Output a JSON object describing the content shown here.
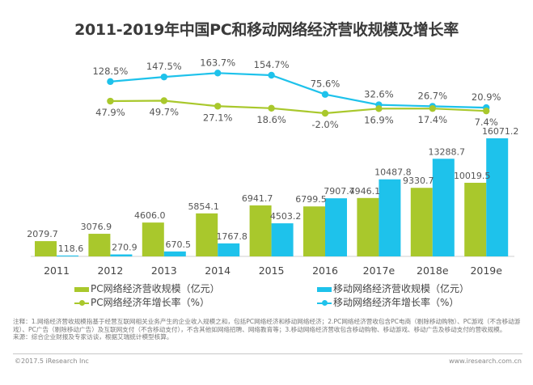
{
  "title": "2011-2019年中国PC和移动网络经济营收规模及增长率",
  "colors": {
    "pc": "#a9c82c",
    "mobile": "#1ec2eb",
    "label": "#555555",
    "axis": "#cfcfcf"
  },
  "chart_data": {
    "type": "bar",
    "title": "2011-2019年中国PC和移动网络经济营收规模及增长率",
    "categories": [
      "2011",
      "2012",
      "2013",
      "2014",
      "2015",
      "2016",
      "2017e",
      "2018e",
      "2019e"
    ],
    "series": [
      {
        "name": "PC网络经济营收规模（亿元）",
        "type": "bar",
        "values": [
          2079.7,
          3076.9,
          4606.0,
          5854.1,
          6941.7,
          6799.5,
          7946.1,
          9330.7,
          10019.5
        ],
        "labels": [
          "2079.7",
          "3076.9",
          "4606.0",
          "5854.1",
          "6941.7",
          "6799.5",
          "7946.1",
          "9330.7",
          "10019.5"
        ]
      },
      {
        "name": "移动网络经济营收规模（亿元）",
        "type": "bar",
        "values": [
          118.6,
          270.9,
          670.5,
          1767.8,
          4503.2,
          7907.4,
          10487.8,
          13288.7,
          16071.2
        ],
        "labels": [
          "118.6",
          "270.9",
          "670.5",
          "1767.8",
          "4503.2",
          "7907.4",
          "10487.8",
          "13288.7",
          "16071.2"
        ]
      },
      {
        "name": "PC网络经济年增长率（%）",
        "type": "line",
        "values": [
          null,
          47.9,
          49.7,
          27.1,
          18.6,
          -2.0,
          16.9,
          17.4,
          7.4
        ],
        "labels": [
          null,
          "47.9%",
          "49.7%",
          "27.1%",
          "18.6%",
          "-2.0%",
          "16.9%",
          "17.4%",
          "7.4%"
        ]
      },
      {
        "name": "移动网络经济年增长率（%）",
        "type": "line",
        "values": [
          null,
          128.5,
          147.5,
          163.7,
          154.7,
          75.6,
          32.6,
          26.7,
          20.9
        ],
        "labels": [
          null,
          "128.5%",
          "147.5%",
          "163.7%",
          "154.7%",
          "75.6%",
          "32.6%",
          "26.7%",
          "20.9%"
        ]
      }
    ],
    "xlabel": "",
    "ylabel": "",
    "ylim": [
      0,
      18000
    ],
    "grid": false,
    "legend": "bottom"
  },
  "legend": {
    "pc_bar": "PC网络经济营收规模（亿元）",
    "mobile_bar": "移动网络经济营收规模（亿元）",
    "pc_line": "PC网络经济年增长率（%）",
    "mobile_line": "移动网络经济年增长率（%）"
  },
  "notes": {
    "line1": "注释：1.网络经济营收规模指基于经营互联网相关业务产生的企业收入规模之和，包括PC网络经济和移动网络经济；2.PC网络经济营收包含PC电商（剔除移动购物）、PC游戏（不含移动游戏）、PC广告（剔除移动广告）及互联网支付（不含移动支付），不含其他如网络招聘、网络教育等；3.移动网络经济营收包含移动购物、移动游戏、移动广告及移动支付的营收规模。",
    "line2": "来源：综合企业财报及专家访谈，根据艾瑞统计模型核算。"
  },
  "footer": {
    "copyright": "©2017.5 iResearch Inc",
    "website": "www.iresearch.com.cn"
  }
}
